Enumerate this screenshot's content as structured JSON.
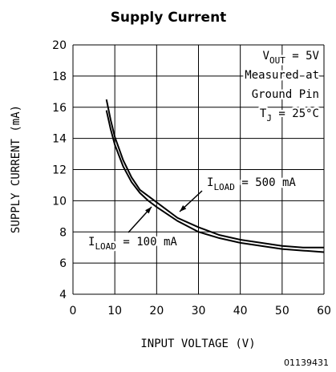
{
  "chart_data": {
    "type": "line",
    "title": "Supply Current",
    "x_label": "INPUT VOLTAGE (V)",
    "y_label": "SUPPLY CURRENT (mA)",
    "footnote": "01139431",
    "x": [
      8,
      9,
      10,
      12,
      14,
      16,
      18,
      20,
      25,
      30,
      35,
      40,
      45,
      50,
      55,
      60
    ],
    "series": [
      {
        "color": "#000000",
        "values": [
          16.5,
          15.2,
          14.1,
          12.6,
          11.5,
          10.7,
          10.3,
          9.9,
          8.9,
          8.3,
          7.8,
          7.5,
          7.3,
          7.1,
          7.0,
          7.0
        ]
      },
      {
        "color": "#000000",
        "values": [
          15.8,
          14.6,
          13.6,
          12.2,
          11.2,
          10.5,
          10.0,
          9.6,
          8.7,
          8.0,
          7.6,
          7.3,
          7.1,
          6.9,
          6.8,
          6.7
        ]
      }
    ],
    "xlim": [
      0,
      60
    ],
    "xticks": [
      0,
      10,
      20,
      30,
      40,
      50,
      60
    ],
    "ylim": [
      4,
      20
    ],
    "yticks": [
      4,
      6,
      8,
      10,
      12,
      14,
      16,
      18,
      20
    ],
    "grid": true,
    "conditions": [
      {
        "main": "V",
        "sub": "OUT",
        "tail": " = 5V"
      },
      {
        "main": "Measured at"
      },
      {
        "main": "Ground Pin"
      },
      {
        "main": "T",
        "sub": "J",
        "tail": " = 25°C"
      }
    ],
    "series_labels": [
      {
        "main": "I",
        "sub": "LOAD",
        "tail": " = 500 mA"
      },
      {
        "main": "I",
        "sub": "LOAD",
        "tail": " = 100 mA"
      }
    ]
  }
}
